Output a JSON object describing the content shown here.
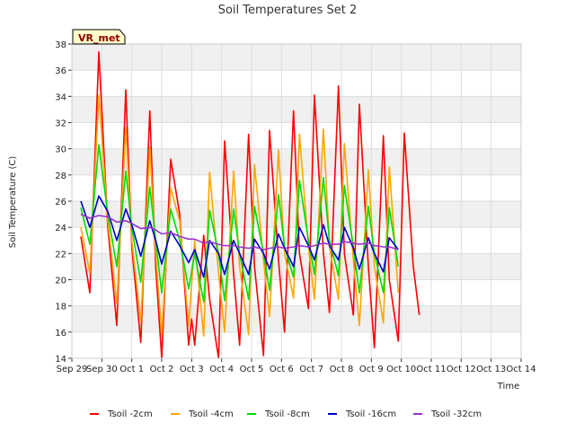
{
  "chart_data": {
    "type": "line",
    "title": "Soil Temperatures Set 2",
    "xlabel": "Time",
    "ylabel": "Soil Temperature (C)",
    "badge": "VR_met",
    "ylim": [
      14,
      38
    ],
    "yticks": [
      14,
      16,
      18,
      20,
      22,
      24,
      26,
      28,
      30,
      32,
      34,
      36,
      38
    ],
    "xlim": [
      0,
      15
    ],
    "xticks": [
      {
        "x": 0,
        "label": "Sep 29"
      },
      {
        "x": 1,
        "label": "Sep 30"
      },
      {
        "x": 2,
        "label": "Oct 1"
      },
      {
        "x": 3,
        "label": "Oct 2"
      },
      {
        "x": 4,
        "label": "Oct 3"
      },
      {
        "x": 5,
        "label": "Oct 4"
      },
      {
        "x": 6,
        "label": "Oct 5"
      },
      {
        "x": 7,
        "label": "Oct 6"
      },
      {
        "x": 8,
        "label": "Oct 7"
      },
      {
        "x": 9,
        "label": "Oct 8"
      },
      {
        "x": 10,
        "label": "Oct 9"
      },
      {
        "x": 11,
        "label": "Oct 10"
      },
      {
        "x": 12,
        "label": "Oct 11"
      },
      {
        "x": 13,
        "label": "Oct 12"
      },
      {
        "x": 14,
        "label": "Oct 13"
      },
      {
        "x": 15,
        "label": "Oct 14"
      }
    ],
    "grid": true,
    "legend_position": "bottom",
    "series": [
      {
        "name": "Tsoil -2cm",
        "color": "#ff0000",
        "x": [
          0.3,
          0.6,
          0.9,
          1.2,
          1.5,
          1.8,
          2.0,
          2.3,
          2.6,
          2.8,
          3.0,
          3.3,
          3.6,
          3.9,
          4.0,
          4.1,
          4.4,
          4.6,
          4.9,
          5.1,
          5.4,
          5.6,
          5.9,
          6.1,
          6.4,
          6.6,
          6.9,
          7.1,
          7.4,
          7.6,
          7.9,
          8.1,
          8.4,
          8.6,
          8.9,
          9.1,
          9.4,
          9.6,
          9.9,
          10.1,
          10.4,
          10.6,
          10.9,
          11.1,
          11.4,
          11.6,
          11.9,
          12.1,
          12.4,
          12.6,
          12.9,
          13.1,
          13.4,
          13.6,
          13.9,
          14.1
        ],
        "y": [
          23.3,
          19.0,
          37.4,
          24.0,
          16.5,
          34.5,
          22.5,
          15.2,
          32.9,
          21.0,
          14.0,
          29.2,
          25.0,
          15.0,
          17.0,
          15.0,
          23.4,
          18.5,
          14.0,
          30.6,
          20.5,
          15.0,
          31.1,
          21.0,
          14.2,
          31.4,
          21.5,
          16.0,
          32.9,
          22.0,
          17.8,
          34.1,
          22.0,
          17.5,
          34.8,
          22.0,
          17.3,
          33.4,
          21.0,
          14.8,
          31.0,
          20.0,
          15.3,
          31.2,
          21.0,
          17.3,
          null,
          null,
          null,
          null,
          null,
          null,
          null,
          null,
          null,
          null
        ]
      },
      {
        "name": "Tsoil -4cm",
        "color": "#ffa500",
        "x": [
          0.3,
          0.6,
          0.9,
          1.2,
          1.5,
          1.8,
          2.0,
          2.3,
          2.6,
          2.8,
          3.0,
          3.3,
          3.6,
          3.9,
          4.1,
          4.4,
          4.6,
          4.9,
          5.1,
          5.4,
          5.6,
          5.9,
          6.1,
          6.4,
          6.6,
          6.9,
          7.1,
          7.4,
          7.6,
          7.9,
          8.1,
          8.4,
          8.6,
          8.9,
          9.1,
          9.4,
          9.6,
          9.9,
          10.1,
          10.4,
          10.6,
          10.9,
          11.1,
          11.4,
          11.6,
          11.9,
          12.1,
          12.4,
          12.6,
          12.9,
          13.1,
          13.4
        ],
        "y": [
          24.0,
          20.5,
          34.1,
          24.5,
          18.2,
          31.6,
          23.0,
          16.8,
          30.1,
          22.0,
          15.8,
          27.0,
          24.5,
          16.5,
          23.0,
          15.7,
          28.2,
          20.5,
          16.0,
          28.3,
          21.0,
          15.8,
          28.8,
          21.5,
          17.2,
          29.9,
          22.0,
          18.6,
          31.1,
          22.5,
          18.5,
          31.5,
          22.5,
          18.5,
          30.4,
          21.5,
          16.5,
          28.4,
          21.0,
          16.7,
          28.6,
          19.0,
          null,
          null,
          null,
          null,
          null,
          null,
          null,
          null,
          null,
          null
        ]
      },
      {
        "name": "Tsoil -8cm",
        "color": "#00dd00",
        "x": [
          0.3,
          0.6,
          0.9,
          1.2,
          1.5,
          1.8,
          2.0,
          2.3,
          2.6,
          2.8,
          3.0,
          3.3,
          3.6,
          3.9,
          4.1,
          4.4,
          4.6,
          4.9,
          5.1,
          5.4,
          5.6,
          5.9,
          6.1,
          6.4,
          6.6,
          6.9,
          7.1,
          7.4,
          7.6,
          7.9,
          8.1,
          8.4,
          8.6,
          8.9,
          9.1,
          9.4,
          9.6,
          9.9,
          10.1,
          10.4,
          10.6,
          10.9,
          11.1,
          11.4,
          11.6,
          11.9,
          12.1,
          12.4,
          12.6,
          12.9,
          13.1,
          13.4
        ],
        "y": [
          25.5,
          22.7,
          30.3,
          25.0,
          21.0,
          28.3,
          24.0,
          19.8,
          27.1,
          23.0,
          19.0,
          25.4,
          23.0,
          19.3,
          22.0,
          18.3,
          25.3,
          22.0,
          18.4,
          25.4,
          22.0,
          18.5,
          25.6,
          22.0,
          19.2,
          26.5,
          22.5,
          20.2,
          27.6,
          23.0,
          20.4,
          27.8,
          23.0,
          20.3,
          27.2,
          22.5,
          19.0,
          25.6,
          22.0,
          19.0,
          25.5,
          21.0,
          null,
          null,
          null,
          null,
          null,
          null,
          null,
          null,
          null,
          null
        ]
      },
      {
        "name": "Tsoil -16cm",
        "color": "#0000cc",
        "x": [
          0.3,
          0.6,
          0.9,
          1.2,
          1.5,
          1.8,
          2.0,
          2.3,
          2.6,
          2.8,
          3.0,
          3.3,
          3.6,
          3.9,
          4.1,
          4.4,
          4.6,
          4.9,
          5.1,
          5.4,
          5.6,
          5.9,
          6.1,
          6.4,
          6.6,
          6.9,
          7.1,
          7.4,
          7.6,
          7.9,
          8.1,
          8.4,
          8.6,
          8.9,
          9.1,
          9.4,
          9.6,
          9.9,
          10.1,
          10.4,
          10.6,
          10.9,
          11.1,
          11.4,
          11.6,
          11.9,
          12.1,
          12.4,
          12.6,
          12.9,
          13.1,
          13.4
        ],
        "y": [
          26.0,
          24.0,
          26.4,
          25.2,
          23.0,
          25.4,
          24.2,
          21.8,
          24.5,
          23.0,
          21.2,
          23.7,
          22.6,
          21.3,
          22.3,
          20.2,
          23.0,
          22.0,
          20.4,
          23.0,
          22.0,
          20.4,
          23.1,
          22.0,
          20.8,
          23.5,
          22.4,
          21.0,
          24.0,
          22.6,
          21.5,
          24.2,
          22.6,
          21.5,
          24.0,
          22.4,
          20.8,
          23.2,
          22.0,
          20.6,
          23.2,
          22.3,
          null,
          null,
          null,
          null,
          null,
          null,
          null,
          null,
          null,
          null
        ]
      },
      {
        "name": "Tsoil -32cm",
        "color": "#9932cc",
        "x": [
          0.3,
          0.6,
          0.9,
          1.2,
          1.5,
          1.8,
          2.0,
          2.3,
          2.6,
          2.8,
          3.0,
          3.3,
          3.6,
          3.9,
          4.1,
          4.4,
          4.6,
          4.9,
          5.1,
          5.4,
          5.6,
          5.9,
          6.1,
          6.4,
          6.6,
          6.9,
          7.1,
          7.4,
          7.6,
          7.9,
          8.1,
          8.4,
          8.6,
          8.9,
          9.1,
          9.4,
          9.6,
          9.9,
          10.1,
          10.4,
          10.6,
          10.9,
          11.1,
          11.4,
          11.6,
          11.9,
          12.1,
          12.4,
          12.6,
          12.9,
          13.1,
          13.4
        ],
        "y": [
          25.0,
          24.7,
          24.9,
          24.8,
          24.4,
          24.5,
          24.3,
          23.9,
          24.0,
          23.8,
          23.5,
          23.6,
          23.3,
          23.1,
          23.1,
          22.8,
          22.9,
          22.7,
          22.6,
          22.6,
          22.5,
          22.4,
          22.5,
          22.3,
          22.4,
          22.5,
          22.4,
          22.5,
          22.6,
          22.5,
          22.6,
          22.8,
          22.7,
          22.7,
          22.9,
          22.8,
          22.7,
          22.8,
          22.6,
          22.5,
          22.5,
          22.3,
          null,
          null,
          null,
          null,
          null,
          null,
          null,
          null,
          null,
          null
        ]
      }
    ]
  }
}
